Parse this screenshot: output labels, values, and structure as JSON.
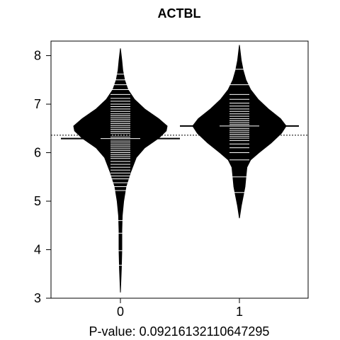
{
  "chart_data": {
    "type": "beanplot",
    "title": "ACTBL",
    "xlabel": "P-value: 0.09216132110647295",
    "ylabel": "",
    "ylim": [
      3,
      8.3
    ],
    "yticks": [
      "3",
      "4",
      "5",
      "6",
      "7",
      "8"
    ],
    "categories": [
      "0",
      "1"
    ],
    "overall_mean": 6.36,
    "grid": false,
    "legend": "none",
    "colors": {
      "bean_fill": "#000000",
      "observation_line": "#ffffff",
      "axis": "#000000"
    },
    "beans": [
      {
        "category": "0",
        "mean": 6.29,
        "density": [
          [
            3.12,
            0.0
          ],
          [
            3.6,
            0.02
          ],
          [
            4.0,
            0.03
          ],
          [
            4.4,
            0.03
          ],
          [
            4.7,
            0.04
          ],
          [
            5.0,
            0.07
          ],
          [
            5.3,
            0.12
          ],
          [
            5.6,
            0.22
          ],
          [
            5.9,
            0.34
          ],
          [
            6.1,
            0.52
          ],
          [
            6.3,
            0.82
          ],
          [
            6.45,
            0.98
          ],
          [
            6.55,
            1.0
          ],
          [
            6.7,
            0.82
          ],
          [
            6.9,
            0.52
          ],
          [
            7.1,
            0.3
          ],
          [
            7.3,
            0.16
          ],
          [
            7.5,
            0.09
          ],
          [
            7.7,
            0.05
          ],
          [
            7.9,
            0.03
          ],
          [
            8.15,
            0.0
          ]
        ],
        "observations": [
          3.68,
          3.98,
          4.34,
          4.6,
          5.22,
          5.3,
          5.38,
          5.46,
          5.52,
          5.58,
          5.64,
          5.7,
          5.76,
          5.82,
          5.88,
          5.92,
          5.96,
          6.0,
          6.04,
          6.08,
          6.12,
          6.16,
          6.2,
          6.24,
          6.28,
          6.32,
          6.36,
          6.4,
          6.44,
          6.48,
          6.52,
          6.56,
          6.6,
          6.64,
          6.68,
          6.72,
          6.76,
          6.8,
          6.85,
          6.9,
          6.95,
          7.0,
          7.06,
          7.12,
          7.2,
          7.3,
          7.4,
          7.5,
          7.62
        ]
      },
      {
        "category": "1",
        "mean": 6.55,
        "density": [
          [
            4.65,
            0.0
          ],
          [
            4.9,
            0.04
          ],
          [
            5.1,
            0.08
          ],
          [
            5.3,
            0.12
          ],
          [
            5.5,
            0.14
          ],
          [
            5.7,
            0.16
          ],
          [
            5.85,
            0.24
          ],
          [
            6.0,
            0.42
          ],
          [
            6.2,
            0.68
          ],
          [
            6.4,
            0.9
          ],
          [
            6.55,
            1.0
          ],
          [
            6.7,
            0.88
          ],
          [
            6.9,
            0.62
          ],
          [
            7.1,
            0.4
          ],
          [
            7.3,
            0.24
          ],
          [
            7.5,
            0.14
          ],
          [
            7.7,
            0.08
          ],
          [
            7.9,
            0.04
          ],
          [
            8.22,
            0.0
          ]
        ],
        "observations": [
          5.18,
          5.5,
          5.85,
          6.0,
          6.1,
          6.18,
          6.25,
          6.3,
          6.34,
          6.38,
          6.42,
          6.46,
          6.5,
          6.54,
          6.58,
          6.62,
          6.66,
          6.7,
          6.75,
          6.8,
          6.85,
          6.9,
          6.96,
          7.02,
          7.1,
          7.2,
          7.4,
          7.72
        ]
      }
    ]
  }
}
